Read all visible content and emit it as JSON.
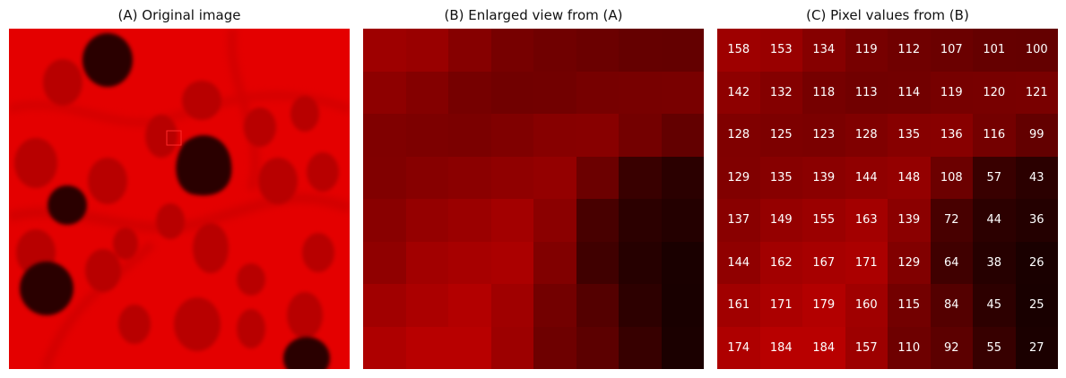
{
  "panels": {
    "a_title": "(A) Original image",
    "b_title": "(B) Enlarged view from (A)",
    "c_title": "(C) Pixel values from (B)"
  },
  "colors": {
    "background": "#e80000",
    "cell_line": "#cc0000",
    "nucleus": "#2a0000",
    "cell_body": "#b80000",
    "roi_outline": "#ff2020"
  },
  "pixel_values": [
    [
      158,
      153,
      134,
      119,
      112,
      107,
      101,
      100
    ],
    [
      142,
      132,
      118,
      113,
      114,
      119,
      120,
      121
    ],
    [
      128,
      125,
      123,
      128,
      135,
      136,
      116,
      99
    ],
    [
      129,
      135,
      139,
      144,
      148,
      108,
      57,
      43
    ],
    [
      137,
      149,
      155,
      163,
      139,
      72,
      44,
      36
    ],
    [
      144,
      162,
      167,
      171,
      129,
      64,
      38,
      26
    ],
    [
      161,
      171,
      179,
      160,
      115,
      84,
      45,
      25
    ],
    [
      174,
      184,
      184,
      157,
      110,
      92,
      55,
      27
    ]
  ]
}
